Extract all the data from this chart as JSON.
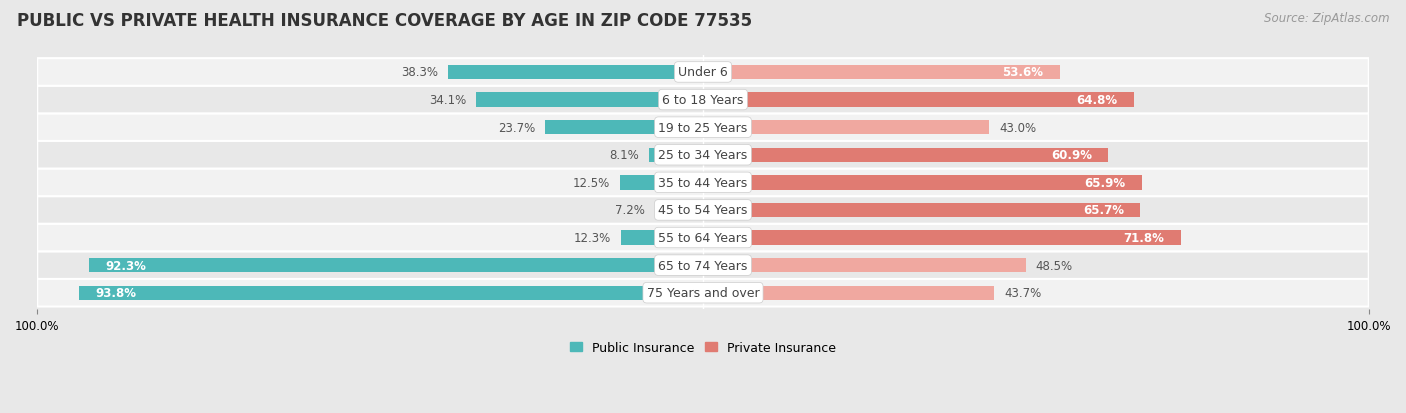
{
  "title": "PUBLIC VS PRIVATE HEALTH INSURANCE COVERAGE BY AGE IN ZIP CODE 77535",
  "source": "Source: ZipAtlas.com",
  "categories": [
    "Under 6",
    "6 to 18 Years",
    "19 to 25 Years",
    "25 to 34 Years",
    "35 to 44 Years",
    "45 to 54 Years",
    "55 to 64 Years",
    "65 to 74 Years",
    "75 Years and over"
  ],
  "public_values": [
    38.3,
    34.1,
    23.7,
    8.1,
    12.5,
    7.2,
    12.3,
    92.3,
    93.8
  ],
  "private_values": [
    53.6,
    64.8,
    43.0,
    60.9,
    65.9,
    65.7,
    71.8,
    48.5,
    43.7
  ],
  "public_color": "#4db8b8",
  "private_color_dark": "#e07b72",
  "private_color_light": "#f0a8a0",
  "public_label": "Public Insurance",
  "private_label": "Private Insurance",
  "bar_height": 0.52,
  "row_color_odd": "#f2f2f2",
  "row_color_even": "#e8e8e8",
  "title_fontsize": 12,
  "source_fontsize": 8.5,
  "label_fontsize": 9,
  "value_fontsize": 8.5,
  "tick_label_size": 8.5,
  "fig_bg": "#e8e8e8"
}
